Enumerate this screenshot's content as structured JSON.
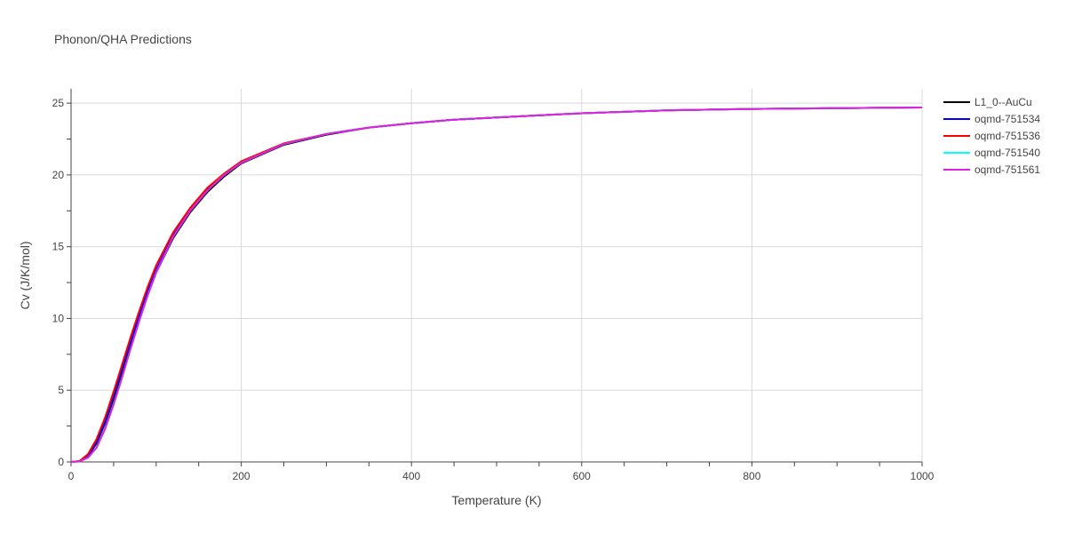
{
  "title": "Phonon/QHA Predictions",
  "chart_data": {
    "type": "line",
    "title": "Phonon/QHA Predictions",
    "xlabel": "Temperature (K)",
    "ylabel": "Cv (J/K/mol)",
    "xlim": [
      0,
      1000
    ],
    "ylim": [
      0,
      26
    ],
    "xticks": [
      0,
      200,
      400,
      600,
      800,
      1000
    ],
    "yticks": [
      0,
      5,
      10,
      15,
      20,
      25
    ],
    "grid": true,
    "legend_position": "right",
    "x": [
      0,
      10,
      20,
      30,
      40,
      50,
      60,
      70,
      80,
      90,
      100,
      120,
      140,
      160,
      180,
      200,
      250,
      300,
      350,
      400,
      450,
      500,
      600,
      700,
      800,
      900,
      1000
    ],
    "series": [
      {
        "name": "L1_0--AuCu",
        "color": "#000000",
        "values": [
          0,
          0.05,
          0.4,
          1.3,
          2.7,
          4.4,
          6.3,
          8.2,
          10.0,
          11.7,
          13.2,
          15.6,
          17.4,
          18.8,
          19.9,
          20.8,
          22.1,
          22.8,
          23.3,
          23.6,
          23.85,
          24.0,
          24.3,
          24.5,
          24.6,
          24.65,
          24.7
        ]
      },
      {
        "name": "oqmd-751534",
        "color": "#0000ff",
        "values": [
          0,
          0.05,
          0.45,
          1.4,
          2.8,
          4.6,
          6.5,
          8.4,
          10.2,
          11.9,
          13.4,
          15.8,
          17.6,
          19.0,
          20.0,
          20.9,
          22.15,
          22.85,
          23.3,
          23.6,
          23.85,
          24.0,
          24.3,
          24.5,
          24.6,
          24.65,
          24.7
        ]
      },
      {
        "name": "oqmd-751536",
        "color": "#ff0000",
        "values": [
          0,
          0.07,
          0.55,
          1.6,
          3.1,
          4.9,
          6.8,
          8.7,
          10.5,
          12.2,
          13.7,
          16.0,
          17.7,
          19.1,
          20.1,
          20.95,
          22.2,
          22.85,
          23.3,
          23.6,
          23.85,
          24.0,
          24.3,
          24.5,
          24.6,
          24.65,
          24.7
        ]
      },
      {
        "name": "oqmd-751540",
        "color": "#00ffff",
        "values": [
          0,
          0.03,
          0.3,
          1.0,
          2.3,
          4.0,
          5.9,
          7.9,
          9.8,
          11.6,
          13.2,
          15.7,
          17.5,
          18.9,
          20.0,
          20.85,
          22.15,
          22.85,
          23.3,
          23.6,
          23.85,
          24.0,
          24.3,
          24.5,
          24.6,
          24.65,
          24.7
        ]
      },
      {
        "name": "oqmd-751561",
        "color": "#e020e0",
        "values": [
          0,
          0.03,
          0.3,
          1.0,
          2.3,
          4.0,
          5.9,
          7.9,
          9.8,
          11.6,
          13.2,
          15.7,
          17.5,
          18.9,
          20.0,
          20.85,
          22.15,
          22.85,
          23.3,
          23.6,
          23.85,
          24.0,
          24.3,
          24.5,
          24.6,
          24.65,
          24.7
        ]
      }
    ]
  }
}
